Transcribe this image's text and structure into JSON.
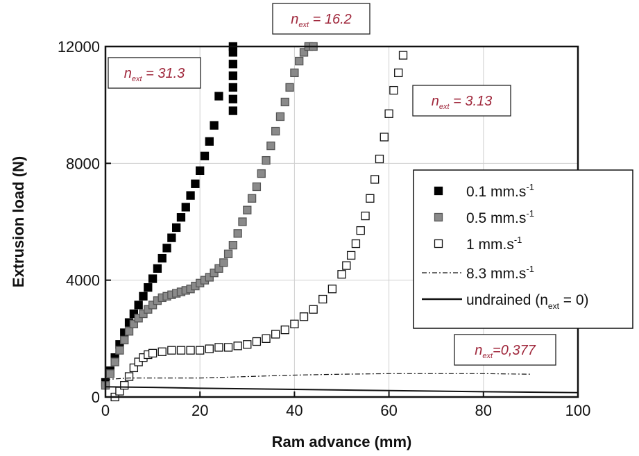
{
  "chart_data": {
    "type": "scatter",
    "xlabel": "Ram advance (mm)",
    "ylabel": "Extrusion load (N)",
    "xlim": [
      0,
      100
    ],
    "ylim": [
      0,
      12000
    ],
    "xticks": [
      "0",
      "20",
      "40",
      "60",
      "80",
      "100"
    ],
    "yticks": [
      "0",
      "4000",
      "8000",
      "12000"
    ],
    "grid": true,
    "legend_position": "right",
    "colors": {
      "annotation": "#a0283c",
      "filled": "#000000",
      "grey": "#8a8a8a"
    },
    "series": [
      {
        "name": "0.1 mm.s-1",
        "legend": {
          "base": "0.1 mm.s",
          "sup": "-1"
        },
        "marker": "filled-square",
        "x": [
          0,
          1,
          2,
          3,
          4,
          5,
          6,
          7,
          8,
          9,
          10,
          11,
          12,
          13,
          14,
          15,
          16,
          17,
          18,
          19,
          20,
          21,
          22,
          23,
          24,
          27,
          27,
          27,
          27,
          27,
          27,
          27
        ],
        "y": [
          500,
          900,
          1350,
          1800,
          2200,
          2550,
          2850,
          3150,
          3450,
          3750,
          4050,
          4400,
          4750,
          5100,
          5450,
          5800,
          6150,
          6500,
          6900,
          7300,
          7750,
          8250,
          8750,
          9300,
          10300,
          9800,
          10200,
          10600,
          11000,
          11400,
          11800,
          12000
        ]
      },
      {
        "name": "0.5 mm.s-1",
        "legend": {
          "base": "0.5 mm.s",
          "sup": "-1"
        },
        "marker": "grey-square",
        "x": [
          0,
          1,
          2,
          3,
          4,
          5,
          6,
          7,
          8,
          9,
          10,
          11,
          12,
          13,
          14,
          15,
          16,
          17,
          18,
          19,
          20,
          21,
          22,
          23,
          24,
          25,
          26,
          27,
          28,
          29,
          30,
          31,
          32,
          33,
          34,
          35,
          36,
          37,
          38,
          39,
          40,
          41,
          42,
          43,
          44
        ],
        "y": [
          400,
          800,
          1200,
          1600,
          1950,
          2250,
          2500,
          2700,
          2850,
          3000,
          3150,
          3300,
          3400,
          3450,
          3500,
          3550,
          3600,
          3650,
          3700,
          3800,
          3900,
          4000,
          4100,
          4250,
          4400,
          4600,
          4900,
          5200,
          5600,
          6000,
          6400,
          6800,
          7200,
          7650,
          8100,
          8600,
          9100,
          9600,
          10100,
          10600,
          11100,
          11500,
          11800,
          12000,
          12000
        ]
      },
      {
        "name": "1 mm.s-1",
        "legend": {
          "base": "1 mm.s",
          "sup": "-1"
        },
        "marker": "open-square",
        "x": [
          2,
          3,
          4,
          5,
          6,
          7,
          8,
          9,
          10,
          12,
          14,
          16,
          18,
          20,
          22,
          24,
          26,
          28,
          30,
          32,
          34,
          36,
          38,
          40,
          42,
          44,
          46,
          48,
          50,
          51,
          52,
          53,
          54,
          55,
          56,
          57,
          58,
          59,
          60,
          61,
          62,
          63
        ],
        "y": [
          0,
          200,
          400,
          700,
          1000,
          1200,
          1350,
          1450,
          1500,
          1550,
          1600,
          1600,
          1600,
          1600,
          1650,
          1700,
          1700,
          1750,
          1800,
          1900,
          2000,
          2150,
          2300,
          2500,
          2750,
          3000,
          3350,
          3700,
          4200,
          4500,
          4850,
          5250,
          5700,
          6200,
          6800,
          7450,
          8150,
          8900,
          9700,
          10500,
          11100,
          11700
        ]
      },
      {
        "name": "8.3 mm.s-1",
        "legend": {
          "base": "8.3 mm.s",
          "sup": "-1"
        },
        "marker": "dash-dot-line",
        "x": [
          0,
          5,
          10,
          20,
          30,
          40,
          50,
          60,
          70,
          80,
          90
        ],
        "y": [
          600,
          650,
          650,
          650,
          700,
          750,
          780,
          800,
          800,
          800,
          780
        ]
      },
      {
        "name": "undrained (n ext = 0)",
        "legend": {
          "base": "undrained (n",
          "sub": "ext",
          "after": " = 0)"
        },
        "marker": "solid-line",
        "x": [
          0,
          5,
          10,
          20,
          40,
          60,
          80,
          100
        ],
        "y": [
          350,
          340,
          330,
          300,
          260,
          220,
          180,
          150
        ]
      }
    ],
    "annotations": [
      {
        "pre": "n",
        "sub": "ext",
        "post": " = 31.3"
      },
      {
        "pre": "n",
        "sub": "ext",
        "post": " = 16.2"
      },
      {
        "pre": "n",
        "sub": "ext",
        "post": " = 3.13"
      },
      {
        "pre": "n",
        "sub": "ext",
        "post": "=0,377"
      }
    ]
  }
}
